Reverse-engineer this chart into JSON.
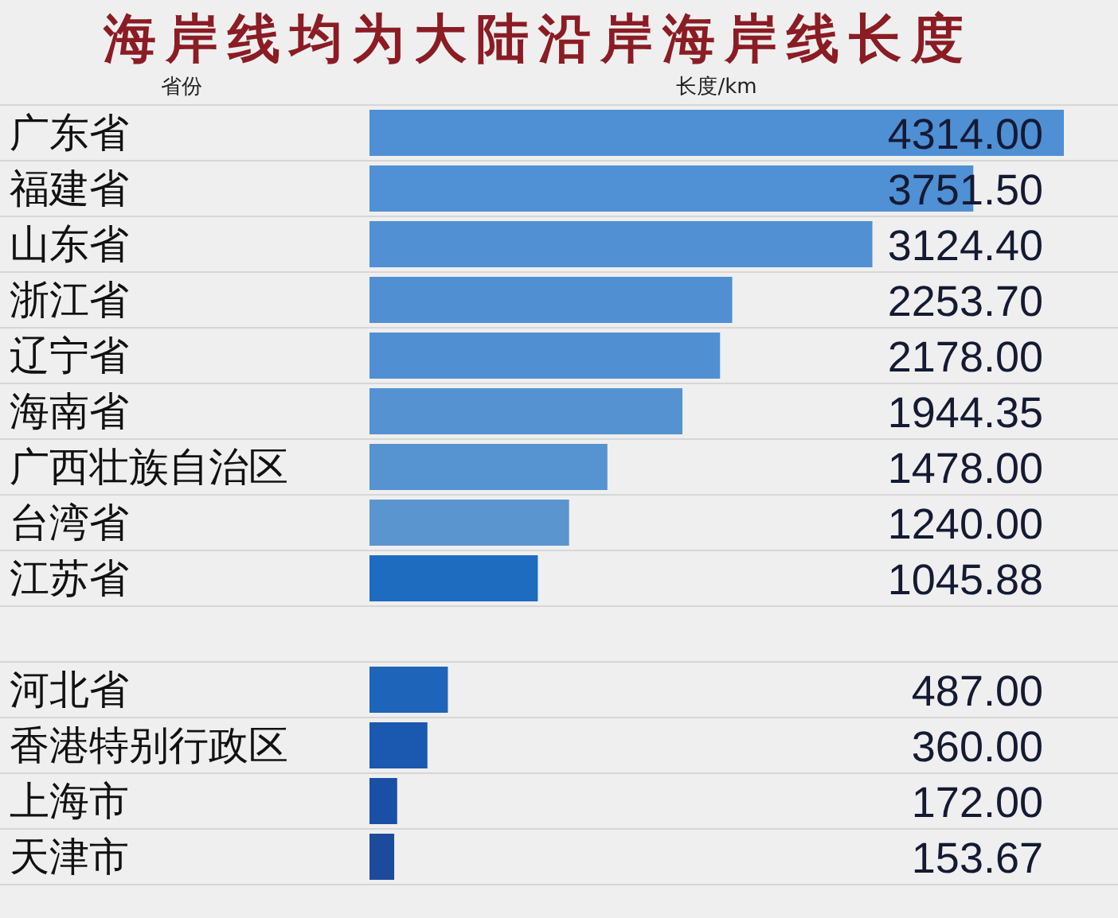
{
  "chart_data": {
    "type": "bar",
    "orientation": "horizontal",
    "title": "海岸线均为大陆沿岸海岸线长度",
    "ylabel": "省份",
    "xlabel": "长度/km",
    "categories": [
      "广东省",
      "福建省",
      "山东省",
      "浙江省",
      "辽宁省",
      "海南省",
      "广西壮族自治区",
      "台湾省",
      "江苏省",
      null,
      "河北省",
      "香港特别行政区",
      "上海市",
      "天津市"
    ],
    "values": [
      4314,
      3751.5,
      3124.4,
      2253.7,
      2178,
      1944.35,
      1478,
      1240,
      1045.88,
      null,
      487,
      360,
      172,
      153.67
    ],
    "value_labels": [
      "4314.00",
      "3751.50",
      "3124.40",
      "2253.70",
      "2178.00",
      "1944.35",
      "1478.00",
      "1240.00",
      "1045.88",
      null,
      "487.00",
      "360.00",
      "172.00",
      "153.67"
    ],
    "colors": [
      "#4f8fd4",
      "#5090d4",
      "#5090d3",
      "#5090d2",
      "#5090d2",
      "#5592d2",
      "#5693d1",
      "#5b95d0",
      "#1e6cbf",
      null,
      "#1e64b8",
      "#1b58b0",
      "#1b4fa5",
      "#1d4b9c"
    ],
    "grid": "y"
  }
}
